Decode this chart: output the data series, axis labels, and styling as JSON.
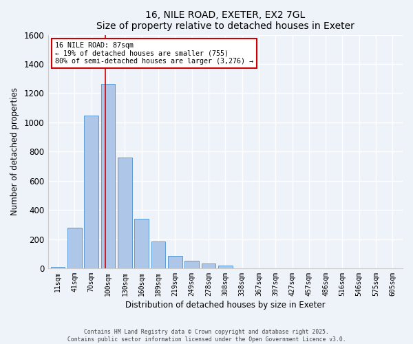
{
  "title": "16, NILE ROAD, EXETER, EX2 7GL",
  "subtitle": "Size of property relative to detached houses in Exeter",
  "xlabel": "Distribution of detached houses by size in Exeter",
  "ylabel": "Number of detached properties",
  "bar_labels": [
    "11sqm",
    "41sqm",
    "70sqm",
    "100sqm",
    "130sqm",
    "160sqm",
    "189sqm",
    "219sqm",
    "249sqm",
    "278sqm",
    "308sqm",
    "338sqm",
    "367sqm",
    "397sqm",
    "427sqm",
    "457sqm",
    "486sqm",
    "516sqm",
    "546sqm",
    "575sqm",
    "605sqm"
  ],
  "bar_values": [
    10,
    280,
    1045,
    1265,
    760,
    340,
    185,
    85,
    50,
    35,
    20,
    0,
    0,
    0,
    0,
    0,
    0,
    0,
    0,
    0,
    0
  ],
  "bar_color": "#aec6e8",
  "bar_edge_color": "#5b9bd5",
  "vline_x": 2.85,
  "vline_color": "#cc0000",
  "annotation_title": "16 NILE ROAD: 87sqm",
  "annotation_line1": "← 19% of detached houses are smaller (755)",
  "annotation_line2": "80% of semi-detached houses are larger (3,276) →",
  "annotation_box_color": "#ffffff",
  "annotation_box_edge": "#cc0000",
  "ylim": [
    0,
    1600
  ],
  "yticks": [
    0,
    200,
    400,
    600,
    800,
    1000,
    1200,
    1400,
    1600
  ],
  "bg_color": "#eef2f9",
  "footer1": "Contains HM Land Registry data © Crown copyright and database right 2025.",
  "footer2": "Contains public sector information licensed under the Open Government Licence v3.0."
}
